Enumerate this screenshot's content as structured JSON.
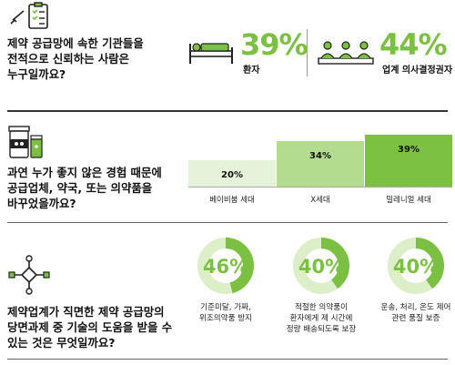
{
  "section1": {
    "question": [
      "제약 공급망에 속한 기관들을",
      "전적으로 신뢰하는 사람은",
      "누구일까요?"
    ],
    "stats": [
      {
        "value": "39%",
        "label": "환자",
        "icon": "patient-bed-icon"
      },
      {
        "value": "44%",
        "label": "업계 의사결정권자",
        "icon": "decision-makers-icon"
      }
    ],
    "icon": "checklist-icon"
  },
  "section2": {
    "question": [
      "과연 누가 좋지 않은 경험 때문에",
      "공급업체, 약국, 또는 의약품을",
      "바꾸었을까요?"
    ],
    "icon": "pharmacy-bottles-icon",
    "chart_data": {
      "type": "bar",
      "categories": [
        "베이비붐 세대",
        "X세대",
        "밀레니얼 세대"
      ],
      "values": [
        20,
        34,
        39
      ],
      "value_labels": [
        "20%",
        "34%",
        "39%"
      ],
      "colors": [
        "#e6f2d9",
        "#b3dc8e",
        "#7cc142"
      ]
    }
  },
  "section3": {
    "question": [
      "제약업계가 직면한 제약 공급망의",
      "당면과제 중 기술의 도움을 받을 수",
      "있는 것은 무엇일까요?"
    ],
    "icon": "network-flow-icon",
    "donuts": [
      {
        "value": "46%",
        "percent": 46,
        "lines": [
          "기준미달, 가짜,",
          "위조의약품 방지"
        ]
      },
      {
        "value": "40%",
        "percent": 40,
        "lines": [
          "적절한 의약품이",
          "환자에게 제 시간에",
          "정량 배송되도록 보장"
        ]
      },
      {
        "value": "40%",
        "percent": 40,
        "lines": [
          "운송, 처리, 온도 제어",
          "관련 품질 보증"
        ]
      }
    ]
  },
  "colors": {
    "accent": "#7bc043",
    "donut_light": "#dcefc9"
  }
}
